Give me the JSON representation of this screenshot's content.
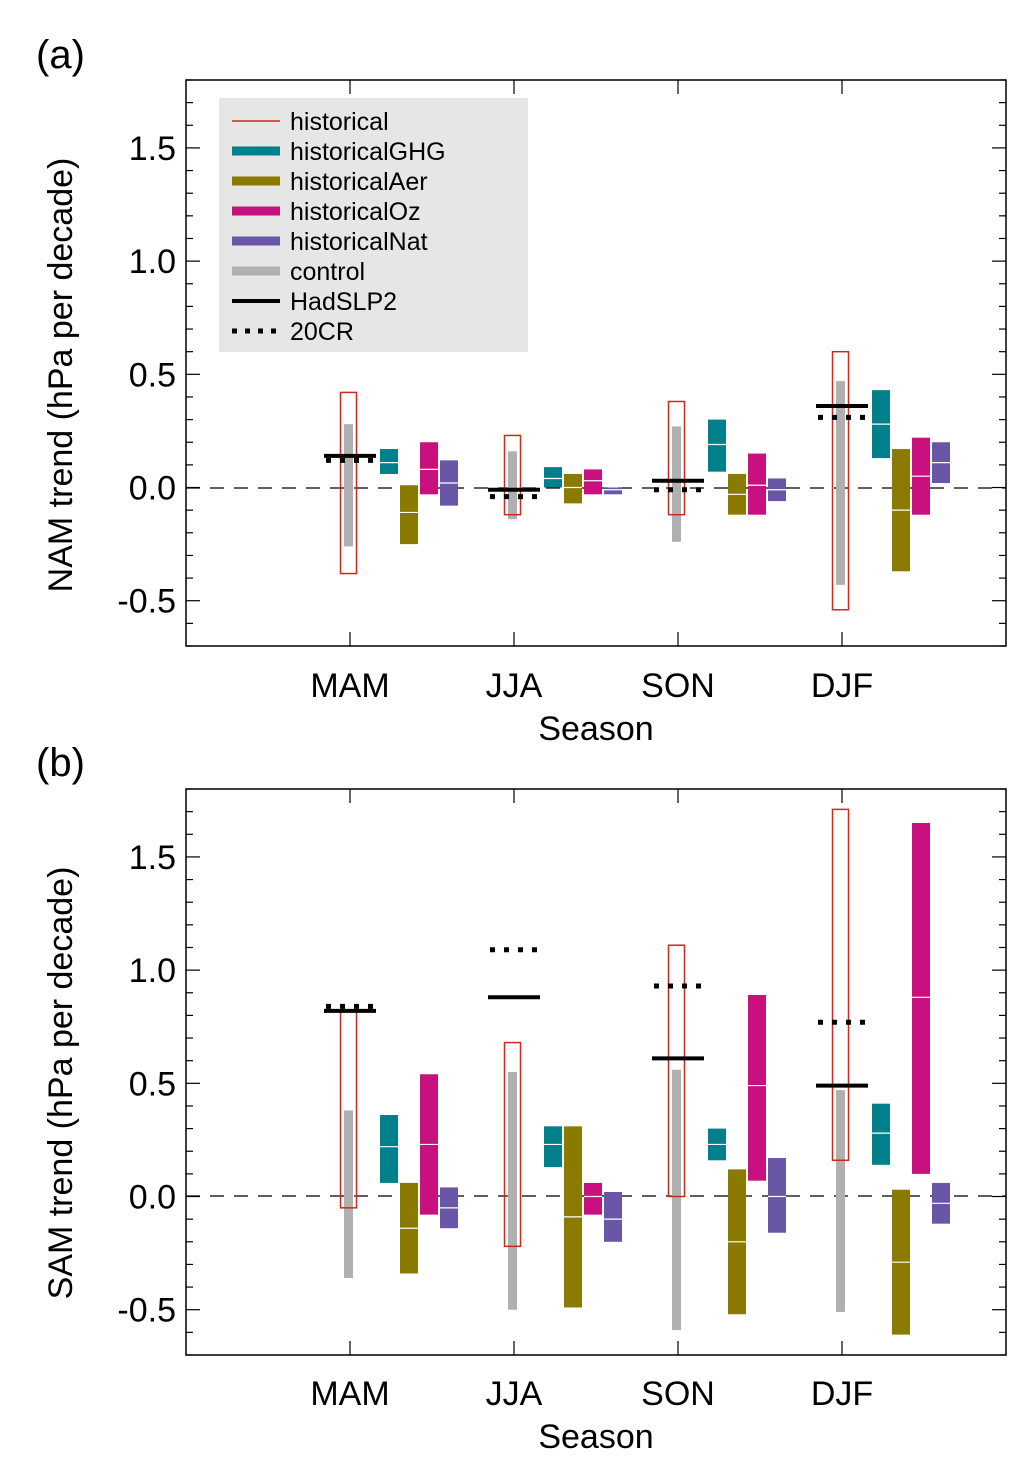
{
  "legend": [
    {
      "key": "historical",
      "label": "historical",
      "color": "#cc2a1f",
      "style": "thin"
    },
    {
      "key": "historicalGHG",
      "label": "historicalGHG",
      "color": "#00808a",
      "style": "thick"
    },
    {
      "key": "historicalAer",
      "label": "historicalAer",
      "color": "#8a7a00",
      "style": "thick"
    },
    {
      "key": "historicalOz",
      "label": "historicalOz",
      "color": "#c8107e",
      "style": "thick"
    },
    {
      "key": "historicalNat",
      "label": "historicalNat",
      "color": "#6a56a6",
      "style": "thick"
    },
    {
      "key": "control",
      "label": "control",
      "color": "#b0b0b0",
      "style": "thick"
    },
    {
      "key": "HadSLP2",
      "label": "HadSLP2",
      "color": "#000000",
      "style": "solid"
    },
    {
      "key": "20CR",
      "label": "20CR",
      "color": "#000000",
      "style": "dotted"
    }
  ],
  "chart_data": [
    {
      "panel_label": "(a)",
      "type": "bar",
      "categories": [
        "MAM",
        "JJA",
        "SON",
        "DJF"
      ],
      "xlabel": "Season",
      "ylabel": "NAM trend (hPa per decade)",
      "ylim": [
        -0.7,
        1.8
      ],
      "yticks": [
        -0.5,
        0.0,
        0.5,
        1.0,
        1.5
      ],
      "ytick_labels": [
        "-0.5",
        "0.0",
        "0.5",
        "1.0",
        "1.5"
      ],
      "legend_position": "top-left",
      "zero_line": "dashed",
      "series": {
        "historical": {
          "low": [
            -0.38,
            -0.12,
            -0.12,
            -0.54
          ],
          "high": [
            0.42,
            0.23,
            0.38,
            0.6
          ]
        },
        "control": {
          "low": [
            -0.26,
            -0.14,
            -0.24,
            -0.43
          ],
          "high": [
            0.28,
            0.16,
            0.27,
            0.47
          ]
        },
        "historicalGHG": {
          "low": [
            0.06,
            0.0,
            0.07,
            0.13
          ],
          "high": [
            0.17,
            0.09,
            0.3,
            0.43
          ],
          "mid": [
            0.11,
            0.04,
            0.19,
            0.28
          ]
        },
        "historicalAer": {
          "low": [
            -0.25,
            -0.07,
            -0.12,
            -0.37
          ],
          "high": [
            0.01,
            0.06,
            0.06,
            0.17
          ],
          "mid": [
            -0.11,
            0.0,
            -0.03,
            -0.1
          ]
        },
        "historicalOz": {
          "low": [
            -0.03,
            -0.03,
            -0.12,
            -0.12
          ],
          "high": [
            0.2,
            0.08,
            0.15,
            0.22
          ],
          "mid": [
            0.08,
            0.03,
            0.01,
            0.05
          ]
        },
        "historicalNat": {
          "low": [
            -0.08,
            -0.03,
            -0.06,
            0.02
          ],
          "high": [
            0.12,
            0.0,
            0.04,
            0.2
          ],
          "mid": [
            0.02,
            -0.01,
            -0.01,
            0.11
          ]
        },
        "HadSLP2": [
          0.14,
          -0.01,
          0.03,
          0.36
        ],
        "20CR": [
          0.12,
          -0.04,
          -0.01,
          0.31
        ]
      }
    },
    {
      "panel_label": "(b)",
      "type": "bar",
      "categories": [
        "MAM",
        "JJA",
        "SON",
        "DJF"
      ],
      "xlabel": "Season",
      "ylabel": "SAM trend (hPa per decade)",
      "ylim": [
        -0.7,
        1.8
      ],
      "yticks": [
        -0.5,
        0.0,
        0.5,
        1.0,
        1.5
      ],
      "ytick_labels": [
        "-0.5",
        "0.0",
        "0.5",
        "1.0",
        "1.5"
      ],
      "zero_line": "dashed",
      "series": {
        "historical": {
          "low": [
            -0.05,
            -0.22,
            0.0,
            0.16
          ],
          "high": [
            0.82,
            0.68,
            1.11,
            1.71
          ]
        },
        "control": {
          "low": [
            -0.36,
            -0.5,
            -0.59,
            -0.51
          ],
          "high": [
            0.38,
            0.55,
            0.56,
            0.47
          ]
        },
        "historicalGHG": {
          "low": [
            0.06,
            0.13,
            0.16,
            0.14
          ],
          "high": [
            0.36,
            0.31,
            0.3,
            0.41
          ],
          "mid": [
            0.22,
            0.23,
            0.23,
            0.28
          ]
        },
        "historicalAer": {
          "low": [
            -0.34,
            -0.49,
            -0.52,
            -0.61
          ],
          "high": [
            0.06,
            0.31,
            0.12,
            0.03
          ],
          "mid": [
            -0.14,
            -0.09,
            -0.2,
            -0.29
          ]
        },
        "historicalOz": {
          "low": [
            -0.08,
            -0.08,
            0.07,
            0.1
          ],
          "high": [
            0.54,
            0.06,
            0.89,
            1.65
          ],
          "mid": [
            0.23,
            0.0,
            0.49,
            0.88
          ]
        },
        "historicalNat": {
          "low": [
            -0.14,
            -0.2,
            -0.16,
            -0.12
          ],
          "high": [
            0.04,
            0.02,
            0.17,
            0.06
          ],
          "mid": [
            -0.05,
            -0.1,
            0.0,
            -0.03
          ]
        },
        "HadSLP2": [
          0.82,
          0.88,
          0.61,
          0.49
        ],
        "20CR": [
          0.84,
          1.09,
          0.93,
          0.77
        ]
      }
    }
  ]
}
